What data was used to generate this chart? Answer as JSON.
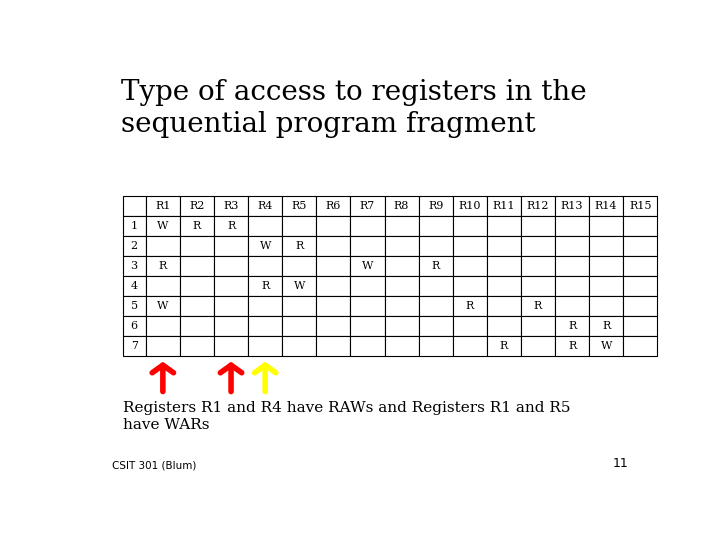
{
  "title_line1": "Type of access to registers in the",
  "title_line2": "sequential program fragment",
  "title_fontsize": 20,
  "background_color": "#ffffff",
  "table_data": [
    [
      "",
      "R1",
      "R2",
      "R3",
      "R4",
      "R5",
      "R6",
      "R7",
      "R8",
      "R9",
      "R10",
      "R11",
      "R12",
      "R13",
      "R14",
      "R15"
    ],
    [
      "1",
      "W",
      "R",
      "R",
      "",
      "",
      "",
      "",
      "",
      "",
      "",
      "",
      "",
      "",
      "",
      ""
    ],
    [
      "2",
      "",
      "",
      "",
      "W",
      "R",
      "",
      "",
      "",
      "",
      "",
      "",
      "",
      "",
      "",
      ""
    ],
    [
      "3",
      "R",
      "",
      "",
      "",
      "",
      "",
      "W",
      "",
      "R",
      "",
      "",
      "",
      "",
      "",
      ""
    ],
    [
      "4",
      "",
      "",
      "",
      "R",
      "W",
      "",
      "",
      "",
      "",
      "",
      "",
      "",
      "",
      "",
      ""
    ],
    [
      "5",
      "W",
      "",
      "",
      "",
      "",
      "",
      "",
      "",
      "",
      "R",
      "",
      "R",
      "",
      "",
      ""
    ],
    [
      "6",
      "",
      "",
      "",
      "",
      "",
      "",
      "",
      "",
      "",
      "",
      "",
      "",
      "R",
      "R",
      ""
    ],
    [
      "7",
      "",
      "",
      "",
      "",
      "",
      "",
      "",
      "",
      "",
      "",
      "R",
      "",
      "R",
      "W",
      ""
    ]
  ],
  "footer_text1": "Registers R1 and R4 have RAWs and Registers R1 and R5",
  "footer_text2": "have WARs",
  "footer_small": "CSIT 301 (Blum)",
  "page_num": "11",
  "arrow_cols": [
    1,
    3,
    4
  ],
  "arrow_colors": [
    "#ff0000",
    "#ff0000",
    "#ffff00"
  ],
  "arrow_outline_colors": [
    "#ff0000",
    "#ff0000",
    "#000000"
  ]
}
